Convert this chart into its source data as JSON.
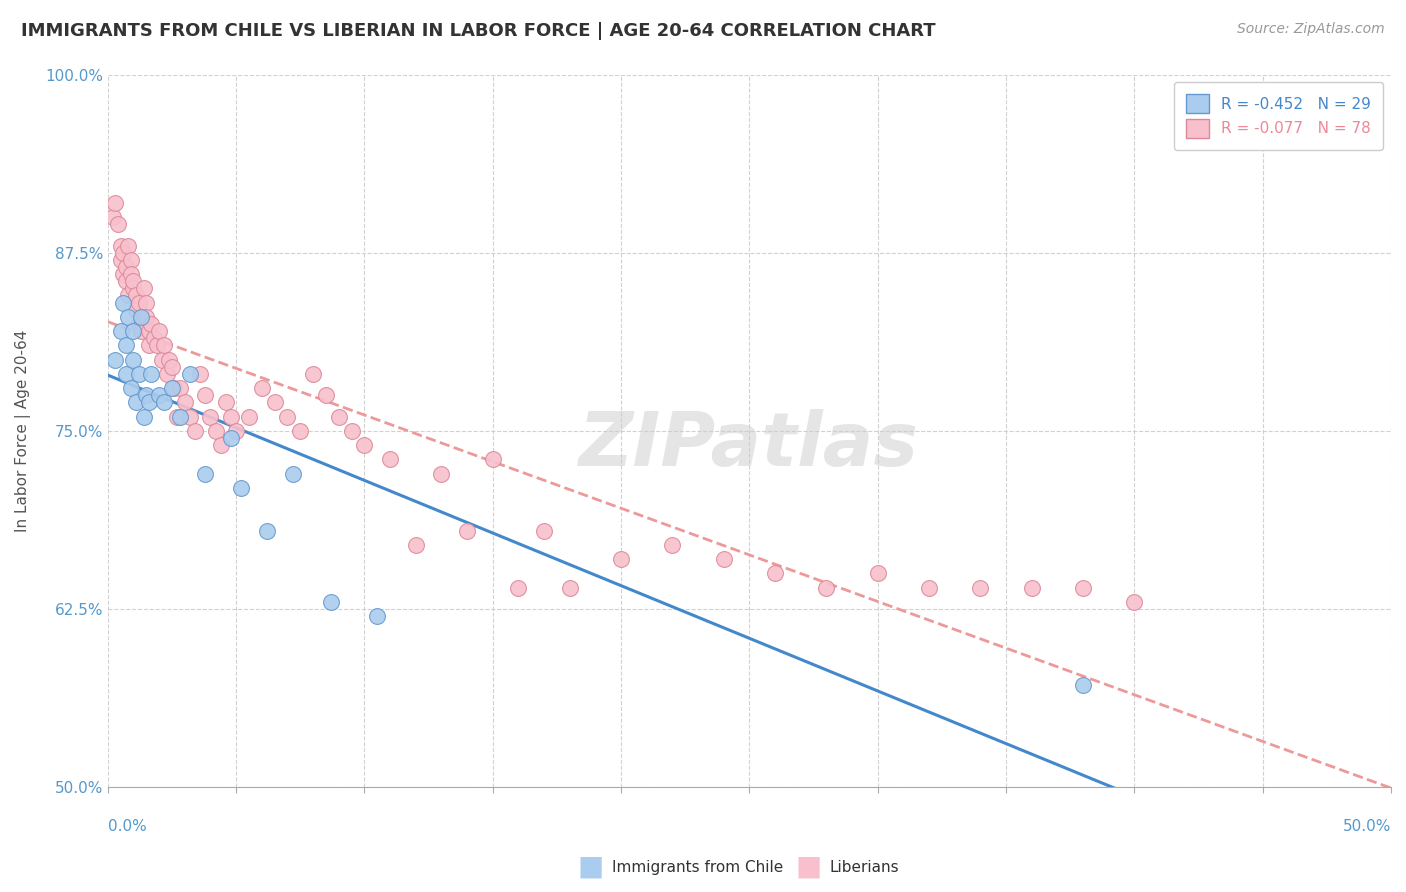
{
  "title": "IMMIGRANTS FROM CHILE VS LIBERIAN IN LABOR FORCE | AGE 20-64 CORRELATION CHART",
  "source_text": "Source: ZipAtlas.com",
  "ylabel": "In Labor Force | Age 20-64",
  "ytick_labels": [
    "50.0%",
    "62.5%",
    "75.0%",
    "87.5%",
    "100.0%"
  ],
  "ytick_values": [
    0.5,
    0.625,
    0.75,
    0.875,
    1.0
  ],
  "xlim": [
    0.0,
    0.5
  ],
  "ylim": [
    0.5,
    1.0
  ],
  "watermark": "ZIPatlas",
  "legend_entries": [
    {
      "label": "R = -0.452   N = 29",
      "facecolor": "#aaccee",
      "edgecolor": "#6699cc",
      "textcolor": "#4488cc"
    },
    {
      "label": "R = -0.077   N = 78",
      "facecolor": "#f8c0cc",
      "edgecolor": "#dd8899",
      "textcolor": "#ee8899"
    }
  ],
  "chile_color": "#aaccee",
  "chile_edge_color": "#6699cc",
  "liberia_color": "#f8c0cc",
  "liberia_edge_color": "#dd8899",
  "chile_trend_color": "#4488cc",
  "liberia_trend_color": "#ee9999",
  "grid_color": "#cccccc",
  "title_color": "#333333",
  "axis_label_color": "#5599cc",
  "chile_x": [
    0.003,
    0.005,
    0.006,
    0.007,
    0.007,
    0.008,
    0.009,
    0.01,
    0.01,
    0.011,
    0.012,
    0.013,
    0.014,
    0.015,
    0.016,
    0.017,
    0.02,
    0.022,
    0.025,
    0.028,
    0.032,
    0.038,
    0.048,
    0.052,
    0.062,
    0.072,
    0.087,
    0.105,
    0.38
  ],
  "chile_y": [
    0.8,
    0.82,
    0.84,
    0.79,
    0.81,
    0.83,
    0.78,
    0.8,
    0.82,
    0.77,
    0.79,
    0.83,
    0.76,
    0.775,
    0.77,
    0.79,
    0.775,
    0.77,
    0.78,
    0.76,
    0.79,
    0.72,
    0.745,
    0.71,
    0.68,
    0.72,
    0.63,
    0.62,
    0.572
  ],
  "liberia_x": [
    0.002,
    0.003,
    0.004,
    0.005,
    0.005,
    0.006,
    0.006,
    0.007,
    0.007,
    0.008,
    0.008,
    0.009,
    0.009,
    0.01,
    0.01,
    0.011,
    0.011,
    0.012,
    0.012,
    0.013,
    0.013,
    0.014,
    0.015,
    0.015,
    0.016,
    0.016,
    0.017,
    0.018,
    0.019,
    0.02,
    0.021,
    0.022,
    0.023,
    0.024,
    0.025,
    0.026,
    0.027,
    0.028,
    0.03,
    0.032,
    0.034,
    0.036,
    0.038,
    0.04,
    0.042,
    0.044,
    0.046,
    0.048,
    0.05,
    0.055,
    0.06,
    0.065,
    0.07,
    0.075,
    0.08,
    0.085,
    0.09,
    0.095,
    0.1,
    0.11,
    0.12,
    0.13,
    0.14,
    0.15,
    0.16,
    0.17,
    0.18,
    0.2,
    0.22,
    0.24,
    0.26,
    0.28,
    0.3,
    0.32,
    0.34,
    0.36,
    0.38,
    0.4
  ],
  "liberia_y": [
    0.9,
    0.91,
    0.895,
    0.88,
    0.87,
    0.86,
    0.875,
    0.865,
    0.855,
    0.845,
    0.88,
    0.87,
    0.86,
    0.85,
    0.855,
    0.845,
    0.835,
    0.825,
    0.84,
    0.83,
    0.82,
    0.85,
    0.84,
    0.83,
    0.82,
    0.81,
    0.825,
    0.815,
    0.81,
    0.82,
    0.8,
    0.81,
    0.79,
    0.8,
    0.795,
    0.78,
    0.76,
    0.78,
    0.77,
    0.76,
    0.75,
    0.79,
    0.775,
    0.76,
    0.75,
    0.74,
    0.77,
    0.76,
    0.75,
    0.76,
    0.78,
    0.77,
    0.76,
    0.75,
    0.79,
    0.775,
    0.76,
    0.75,
    0.74,
    0.73,
    0.67,
    0.72,
    0.68,
    0.73,
    0.64,
    0.68,
    0.64,
    0.66,
    0.67,
    0.66,
    0.65,
    0.64,
    0.65,
    0.64,
    0.64,
    0.64,
    0.64,
    0.63
  ]
}
